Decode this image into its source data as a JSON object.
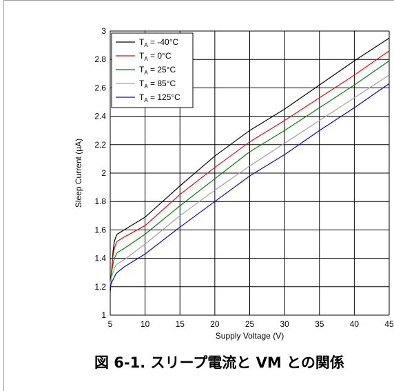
{
  "caption": "図 6-1. スリープ電流と VM との関係",
  "chart_data": {
    "type": "line",
    "title": "",
    "xlabel": "Supply Voltage (V)",
    "ylabel": "Sleep Current (µA)",
    "xlim": [
      5,
      45
    ],
    "ylim": [
      1,
      3
    ],
    "xticks": [
      5,
      10,
      15,
      20,
      25,
      30,
      35,
      40,
      45
    ],
    "yticks": [
      1,
      1.2,
      1.4,
      1.6,
      1.8,
      2,
      2.2,
      2.4,
      2.6,
      2.8,
      3
    ],
    "xtick_labels": [
      "5",
      "10",
      "15",
      "20",
      "25",
      "30",
      "35",
      "40",
      "45"
    ],
    "ytick_labels": [
      "1",
      "1.2",
      "1.4",
      "1.6",
      "1.8",
      "2",
      "2.2",
      "2.4",
      "2.6",
      "2.8",
      "3"
    ],
    "grid": true,
    "legend_position": "top-left",
    "series": [
      {
        "name": "T_A = -40°C",
        "label_main": "T",
        "label_sub": "A",
        "label_rest": " = -40°C",
        "color": "#000000",
        "x": [
          5,
          5.2,
          5.4,
          5.6,
          5.8,
          6,
          7,
          10,
          15,
          20,
          25,
          30,
          35,
          40,
          45
        ],
        "y": [
          1.16,
          1.3,
          1.45,
          1.52,
          1.55,
          1.57,
          1.6,
          1.69,
          1.91,
          2.12,
          2.3,
          2.45,
          2.62,
          2.79,
          2.95
        ]
      },
      {
        "name": "T_A = 0°C",
        "label_main": "T",
        "label_sub": "A",
        "label_rest": " = 0°C",
        "color": "#ff0000",
        "x": [
          5,
          5.2,
          5.4,
          5.6,
          5.8,
          6,
          7,
          10,
          15,
          20,
          25,
          30,
          35,
          40,
          45
        ],
        "y": [
          1.2,
          1.32,
          1.42,
          1.47,
          1.5,
          1.52,
          1.55,
          1.63,
          1.85,
          2.04,
          2.22,
          2.37,
          2.53,
          2.69,
          2.86
        ]
      },
      {
        "name": "T_A = 25°C",
        "label_main": "T",
        "label_sub": "A",
        "label_rest": " = 25°C",
        "color": "#008000",
        "x": [
          5,
          5.2,
          5.4,
          5.6,
          5.8,
          6,
          7,
          10,
          15,
          20,
          25,
          30,
          35,
          40,
          45
        ],
        "y": [
          1.22,
          1.3,
          1.36,
          1.4,
          1.42,
          1.44,
          1.47,
          1.57,
          1.77,
          1.96,
          2.15,
          2.3,
          2.46,
          2.62,
          2.79
        ]
      },
      {
        "name": "T_A = 85°C",
        "label_main": "T",
        "label_sub": "A",
        "label_rest": " = 85°C",
        "color": "#a0a0a0",
        "x": [
          5,
          5.2,
          5.4,
          5.6,
          5.8,
          6,
          7,
          10,
          15,
          20,
          25,
          30,
          35,
          40,
          45
        ],
        "y": [
          1.22,
          1.27,
          1.3,
          1.33,
          1.35,
          1.36,
          1.39,
          1.5,
          1.7,
          1.88,
          2.05,
          2.21,
          2.37,
          2.53,
          2.69
        ]
      },
      {
        "name": "T_A = 125°C",
        "label_main": "T",
        "label_sub": "A",
        "label_rest": " = 125°C",
        "color": "#0000ff",
        "x": [
          5,
          5.2,
          5.4,
          5.6,
          5.8,
          6,
          7,
          10,
          15,
          20,
          25,
          30,
          35,
          40,
          45
        ],
        "y": [
          1.2,
          1.23,
          1.25,
          1.27,
          1.29,
          1.3,
          1.34,
          1.43,
          1.62,
          1.8,
          1.98,
          2.13,
          2.3,
          2.46,
          2.63
        ]
      }
    ]
  }
}
